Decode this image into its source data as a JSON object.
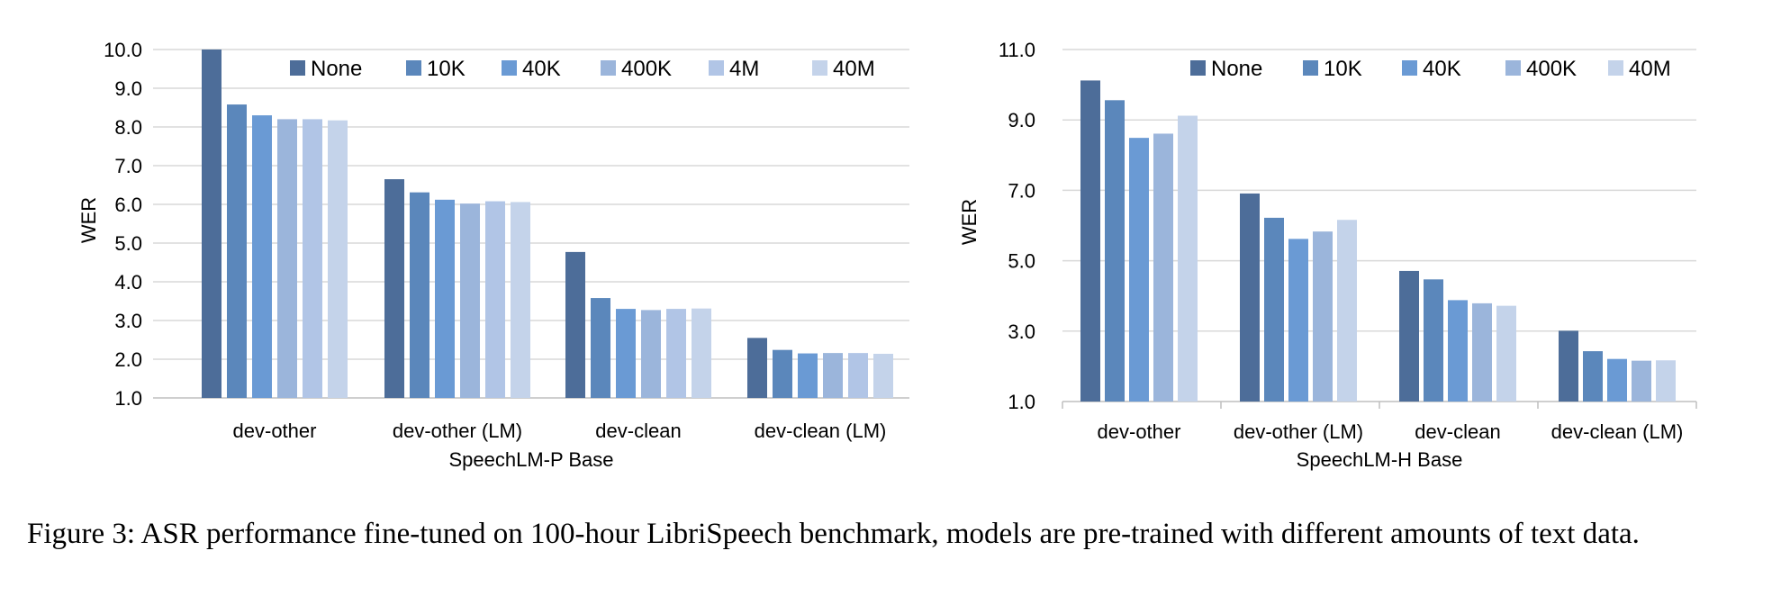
{
  "colors": {
    "None": "#4d6d99",
    "10K": "#5b87bb",
    "40K": "#6a9ad4",
    "400K": "#9bb5db",
    "4M": "#b1c5e6",
    "40M": "#c4d3ea",
    "grid": "#d9d9d9",
    "axis": "#bfbfbf"
  },
  "caption": "Figure 3: ASR performance fine-tuned on 100-hour LibriSpeech benchmark, models are pre-trained with different amounts of text data.",
  "chart_data": [
    {
      "type": "bar",
      "title": "",
      "xlabel": "SpeechLM-P Base",
      "ylabel": "WER",
      "ylim": [
        1.0,
        10.0
      ],
      "yticks": [
        "10.0",
        "9.0",
        "8.0",
        "7.0",
        "6.0",
        "5.0",
        "4.0",
        "3.0",
        "2.0",
        "1.0"
      ],
      "grid": true,
      "legend": "top",
      "categories": [
        "dev-other",
        "dev-other (LM)",
        "dev-clean",
        "dev-clean (LM)"
      ],
      "series": [
        {
          "name": "None",
          "values": [
            10.0,
            6.65,
            4.77,
            2.55
          ]
        },
        {
          "name": "10K",
          "values": [
            8.58,
            6.31,
            3.58,
            2.24
          ]
        },
        {
          "name": "40K",
          "values": [
            8.3,
            6.12,
            3.3,
            2.15
          ]
        },
        {
          "name": "400K",
          "values": [
            8.2,
            6.02,
            3.27,
            2.16
          ]
        },
        {
          "name": "4M",
          "values": [
            8.2,
            6.08,
            3.3,
            2.16
          ]
        },
        {
          "name": "40M",
          "values": [
            8.17,
            6.06,
            3.31,
            2.14
          ]
        }
      ]
    },
    {
      "type": "bar",
      "title": "",
      "xlabel": "SpeechLM-H Base",
      "ylabel": "WER",
      "ylim": [
        1.0,
        11.0
      ],
      "yticks": [
        "11.0",
        "9.0",
        "7.0",
        "5.0",
        "3.0",
        "1.0"
      ],
      "grid": true,
      "legend": "top",
      "categories": [
        "dev-other",
        "dev-other (LM)",
        "dev-clean",
        "dev-clean (LM)"
      ],
      "series": [
        {
          "name": "None",
          "values": [
            10.12,
            6.91,
            4.71,
            3.01
          ]
        },
        {
          "name": "10K",
          "values": [
            9.56,
            6.22,
            4.47,
            2.43
          ]
        },
        {
          "name": "40K",
          "values": [
            8.49,
            5.62,
            3.88,
            2.21
          ]
        },
        {
          "name": "400K",
          "values": [
            8.61,
            5.83,
            3.79,
            2.16
          ]
        },
        {
          "name": "40M",
          "values": [
            9.12,
            6.16,
            3.72,
            2.17
          ]
        }
      ]
    }
  ]
}
